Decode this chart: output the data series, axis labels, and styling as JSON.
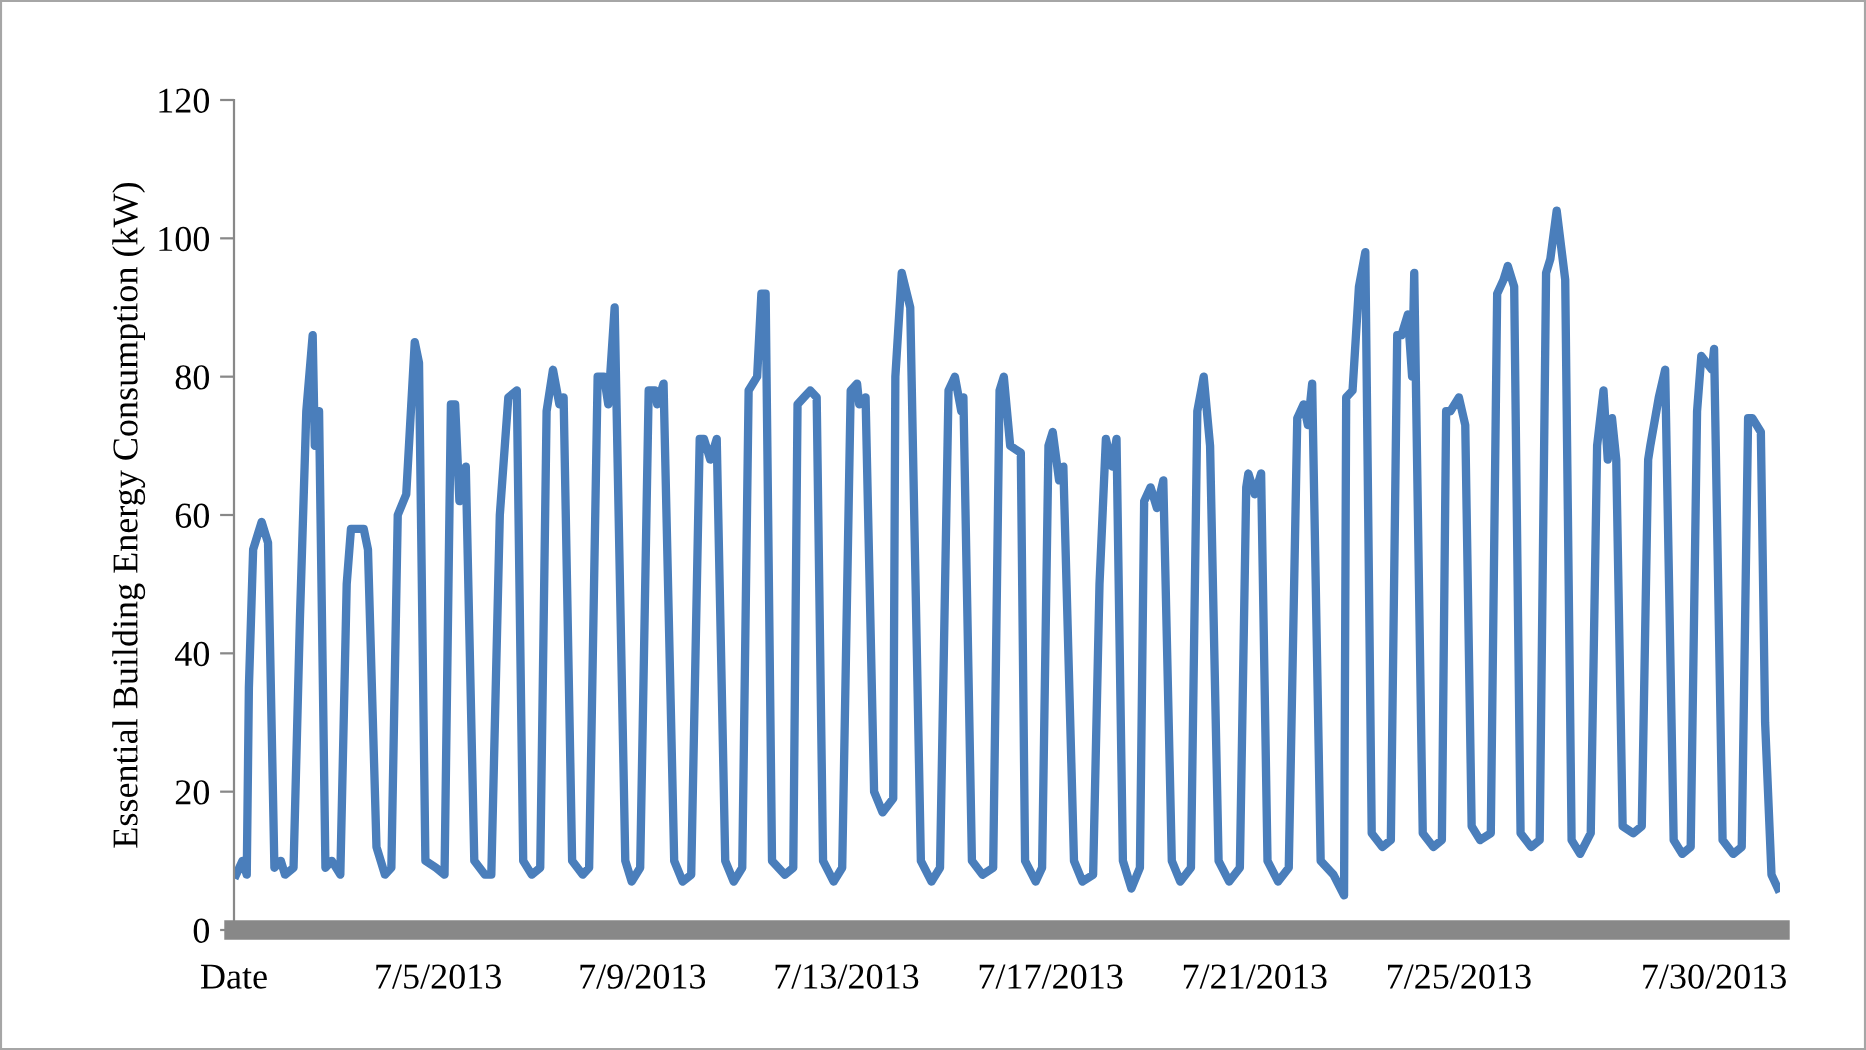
{
  "chart_data": {
    "type": "line",
    "ylabel": "Essential Building Energy Consumption (kW)",
    "x": [
      "2013-07-01T01:00",
      "2013-07-01T04:00",
      "2013-07-01T06:00",
      "2013-07-01T07:00",
      "2013-07-01T09:00",
      "2013-07-01T13:00",
      "2013-07-01T16:00",
      "2013-07-01T19:00",
      "2013-07-01T22:00",
      "2013-07-02T00:00",
      "2013-07-02T04:00",
      "2013-07-02T07:00",
      "2013-07-02T10:00",
      "2013-07-02T13:00",
      "2013-07-02T14:00",
      "2013-07-02T16:00",
      "2013-07-02T19:00",
      "2013-07-02T22:00",
      "2013-07-03T02:00",
      "2013-07-03T05:00",
      "2013-07-03T07:00",
      "2013-07-03T13:00",
      "2013-07-03T15:00",
      "2013-07-03T19:00",
      "2013-07-03T23:00",
      "2013-07-04T02:00",
      "2013-07-04T05:00",
      "2013-07-04T09:00",
      "2013-07-04T13:00",
      "2013-07-04T15:00",
      "2013-07-04T18:00",
      "2013-07-04T23:00",
      "2013-07-05T03:00",
      "2013-07-05T06:00",
      "2013-07-05T08:00",
      "2013-07-05T10:00",
      "2013-07-05T13:00",
      "2013-07-05T17:00",
      "2013-07-05T22:00",
      "2013-07-06T01:00",
      "2013-07-06T05:00",
      "2013-07-06T09:00",
      "2013-07-06T13:00",
      "2013-07-06T16:00",
      "2013-07-06T20:00",
      "2013-07-07T00:00",
      "2013-07-07T03:00",
      "2013-07-07T06:00",
      "2013-07-07T09:00",
      "2013-07-07T11:00",
      "2013-07-07T15:00",
      "2013-07-07T20:00",
      "2013-07-07T23:00",
      "2013-07-08T03:00",
      "2013-07-08T06:00",
      "2013-07-08T08:00",
      "2013-07-08T11:00",
      "2013-07-08T16:00",
      "2013-07-08T19:00",
      "2013-07-08T23:00",
      "2013-07-09T03:00",
      "2013-07-09T06:00",
      "2013-07-09T07:00",
      "2013-07-09T10:00",
      "2013-07-09T15:00",
      "2013-07-09T19:00",
      "2013-07-09T23:00",
      "2013-07-10T03:00",
      "2013-07-10T05:00",
      "2013-07-10T08:00",
      "2013-07-10T11:00",
      "2013-07-10T15:00",
      "2013-07-10T19:00",
      "2013-07-10T23:00",
      "2013-07-11T02:00",
      "2013-07-11T06:00",
      "2013-07-11T08:00",
      "2013-07-11T10:00",
      "2013-07-11T13:00",
      "2013-07-11T19:00",
      "2013-07-11T23:00",
      "2013-07-12T01:00",
      "2013-07-12T04:00",
      "2013-07-12T07:00",
      "2013-07-12T10:00",
      "2013-07-12T13:00",
      "2013-07-12T18:00",
      "2013-07-12T22:00",
      "2013-07-13T02:00",
      "2013-07-13T05:00",
      "2013-07-13T06:00",
      "2013-07-13T09:00",
      "2013-07-13T13:00",
      "2013-07-13T17:00",
      "2013-07-13T22:00",
      "2013-07-13T23:00",
      "2013-07-14T02:00",
      "2013-07-14T06:00",
      "2013-07-14T11:00",
      "2013-07-14T16:00",
      "2013-07-14T20:00",
      "2013-07-15T00:00",
      "2013-07-15T03:00",
      "2013-07-15T06:00",
      "2013-07-15T07:00",
      "2013-07-15T11:00",
      "2013-07-15T16:00",
      "2013-07-15T21:00",
      "2013-07-16T00:00",
      "2013-07-16T02:00",
      "2013-07-16T05:00",
      "2013-07-16T10:00",
      "2013-07-16T12:00",
      "2013-07-16T17:00",
      "2013-07-16T20:00",
      "2013-07-16T23:00",
      "2013-07-17T01:00",
      "2013-07-17T04:00",
      "2013-07-17T06:00",
      "2013-07-17T11:00",
      "2013-07-17T15:00",
      "2013-07-17T20:00",
      "2013-07-17T23:00",
      "2013-07-18T02:00",
      "2013-07-18T05:00",
      "2013-07-18T07:00",
      "2013-07-18T10:00",
      "2013-07-18T14:00",
      "2013-07-18T18:00",
      "2013-07-18T20:00",
      "2013-07-18T23:00",
      "2013-07-19T02:00",
      "2013-07-19T05:00",
      "2013-07-19T09:00",
      "2013-07-19T13:00",
      "2013-07-19T18:00",
      "2013-07-19T21:00",
      "2013-07-20T00:00",
      "2013-07-20T03:00",
      "2013-07-20T07:00",
      "2013-07-20T12:00",
      "2013-07-20T17:00",
      "2013-07-20T20:00",
      "2013-07-20T21:00",
      "2013-07-21T00:00",
      "2013-07-21T03:00",
      "2013-07-21T06:00",
      "2013-07-21T11:00",
      "2013-07-21T16:00",
      "2013-07-21T20:00",
      "2013-07-21T23:00",
      "2013-07-22T01:00",
      "2013-07-22T03:00",
      "2013-07-22T07:00",
      "2013-07-22T13:00",
      "2013-07-22T18:00",
      "2013-07-22T19:00",
      "2013-07-22T22:00",
      "2013-07-23T01:00",
      "2013-07-23T04:00",
      "2013-07-23T07:00",
      "2013-07-23T12:00",
      "2013-07-23T16:00",
      "2013-07-23T19:00",
      "2013-07-23T21:00",
      "2013-07-24T00:00",
      "2013-07-24T02:00",
      "2013-07-24T03:00",
      "2013-07-24T07:00",
      "2013-07-24T12:00",
      "2013-07-24T16:00",
      "2013-07-24T18:00",
      "2013-07-24T20:00",
      "2013-07-25T00:00",
      "2013-07-25T03:00",
      "2013-07-25T06:00",
      "2013-07-25T10:00",
      "2013-07-25T15:00",
      "2013-07-25T18:00",
      "2013-07-25T21:00",
      "2013-07-25T23:00",
      "2013-07-26T02:00",
      "2013-07-26T05:00",
      "2013-07-26T10:00",
      "2013-07-26T14:00",
      "2013-07-26T17:00",
      "2013-07-26T19:00",
      "2013-07-26T22:00",
      "2013-07-27T02:00",
      "2013-07-27T05:00",
      "2013-07-27T09:00",
      "2013-07-27T14:00",
      "2013-07-27T17:00",
      "2013-07-27T20:00",
      "2013-07-27T22:00",
      "2013-07-28T00:00",
      "2013-07-28T02:00",
      "2013-07-28T05:00",
      "2013-07-28T10:00",
      "2013-07-28T14:00",
      "2013-07-28T17:00",
      "2013-07-28T18:00",
      "2013-07-28T22:00",
      "2013-07-29T01:00",
      "2013-07-29T05:00",
      "2013-07-29T09:00",
      "2013-07-29T13:00",
      "2013-07-29T16:00",
      "2013-07-29T18:00",
      "2013-07-29T23:00",
      "2013-07-30T00:00",
      "2013-07-30T04:00",
      "2013-07-30T09:00",
      "2013-07-30T13:00",
      "2013-07-30T16:00",
      "2013-07-30T18:00",
      "2013-07-30T22:00",
      "2013-07-31T00:00",
      "2013-07-31T03:00",
      "2013-07-31T06:00"
    ],
    "series": [
      {
        "color": "#4a7ebb",
        "values": [
          8,
          10,
          8,
          35,
          55,
          59,
          56,
          9,
          10,
          8,
          9,
          45,
          75,
          86,
          70,
          75,
          9,
          10,
          8,
          50,
          58,
          58,
          55,
          12,
          8,
          9,
          60,
          63,
          85,
          82,
          10,
          9,
          8,
          76,
          76,
          62,
          67,
          10,
          8,
          8,
          60,
          77,
          78,
          10,
          8,
          9,
          75,
          81,
          76,
          77,
          10,
          8,
          9,
          80,
          80,
          76,
          90,
          10,
          7,
          9,
          78,
          78,
          76,
          79,
          10,
          7,
          8,
          71,
          71,
          68,
          71,
          10,
          7,
          9,
          78,
          80,
          92,
          92,
          10,
          8,
          9,
          76,
          77,
          78,
          77,
          10,
          7,
          9,
          78,
          79,
          76,
          77,
          20,
          17,
          19,
          80,
          95,
          90,
          10,
          7,
          9,
          78,
          80,
          75,
          77,
          10,
          8,
          9,
          78,
          80,
          70,
          69,
          10,
          7,
          9,
          70,
          72,
          65,
          67,
          10,
          7,
          8,
          50,
          71,
          67,
          71,
          10,
          6,
          9,
          62,
          64,
          61,
          65,
          10,
          7,
          9,
          75,
          80,
          70,
          10,
          7,
          9,
          64,
          66,
          63,
          66,
          10,
          7,
          9,
          74,
          76,
          73,
          79,
          10,
          8,
          5,
          77,
          78,
          93,
          98,
          14,
          12,
          13,
          86,
          86,
          89,
          80,
          95,
          14,
          12,
          13,
          75,
          75,
          77,
          73,
          15,
          13,
          14,
          92,
          94,
          96,
          93,
          14,
          12,
          13,
          95,
          97,
          104,
          94,
          13,
          11,
          14,
          70,
          78,
          68,
          74,
          68,
          15,
          14,
          15,
          68,
          70,
          77,
          81,
          13,
          11,
          12,
          75,
          83,
          81,
          84,
          13,
          11,
          12,
          74,
          74,
          72,
          30,
          8,
          6
        ]
      }
    ],
    "xlim": [
      "2013-07-01T00:00",
      "2013-07-31T07:00"
    ],
    "xticks": [
      {
        "value": "2013-07-01",
        "label": "Date"
      },
      {
        "value": "2013-07-05",
        "label": "7/5/2013"
      },
      {
        "value": "2013-07-09",
        "label": "7/9/2013"
      },
      {
        "value": "2013-07-13",
        "label": "7/13/2013"
      },
      {
        "value": "2013-07-17",
        "label": "7/17/2013"
      },
      {
        "value": "2013-07-21",
        "label": "7/21/2013"
      },
      {
        "value": "2013-07-25",
        "label": "7/25/2013"
      },
      {
        "value": "2013-07-30",
        "label": "7/30/2013"
      }
    ],
    "ylim": [
      0,
      120
    ],
    "yticks": [
      0,
      20,
      40,
      60,
      80,
      100,
      120
    ],
    "grid": false,
    "line_style": "solid"
  }
}
